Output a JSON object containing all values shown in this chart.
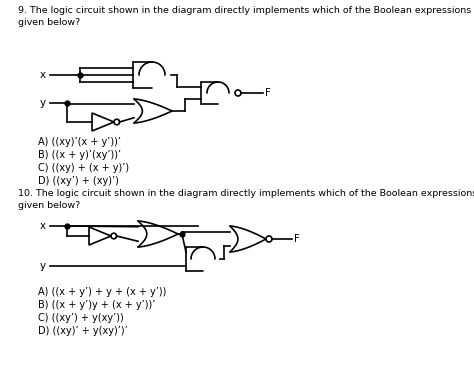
{
  "title1": "9. The logic circuit shown in the diagram directly implements which of the Boolean expressions\ngiven below?",
  "title2": "10. The logic circuit shown in the diagram directly implements which of the Boolean expressions\ngiven below?",
  "answers1": [
    "A) ((xy)’(x + y’))’",
    "B) ((x + y)’(xy’))’",
    "C) ((xy) + (x + y)’)",
    "D) ((xy’) + (xy)’)"
  ],
  "answers2": [
    "A) ((x + y’) + y + (x + y’))",
    "B) ((x + y’)y + (x + y’))’",
    "C) ((xy’) + y(xy’))",
    "D) ((xy)’ + y(xy)’)’"
  ],
  "bg_color": "#ffffff",
  "text_color": "#000000",
  "line_color": "#000000",
  "font_size_title": 6.8,
  "font_size_answers": 7.0,
  "font_size_labels": 7.5
}
